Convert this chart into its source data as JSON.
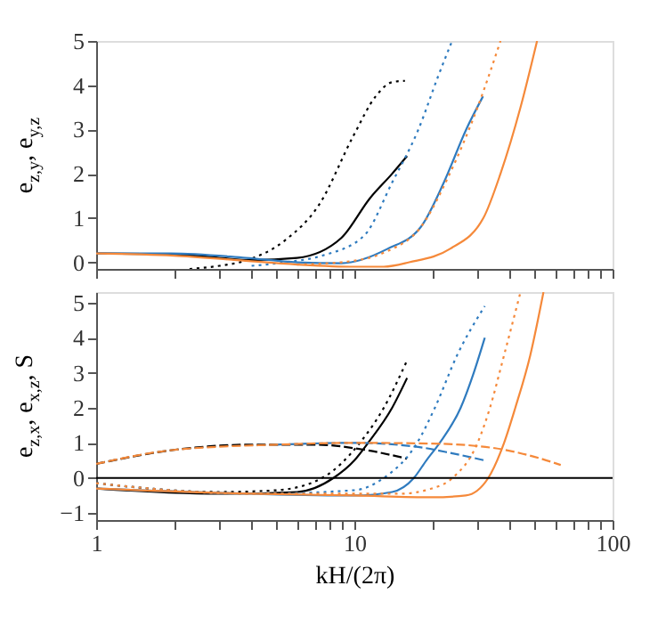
{
  "chart_data": [
    {
      "type": "line",
      "ylabel": "e$_{z,y}$, e$_{y,z}$",
      "xlim": [
        1,
        100
      ],
      "log": "x",
      "ylim": [
        -0.15,
        5
      ],
      "yticks": [
        0,
        1,
        2,
        3,
        4,
        5
      ],
      "xticks": [
        1,
        {
          "value": 2,
          "label": null
        },
        {
          "value": 3,
          "label": null
        },
        {
          "value": 4,
          "label": null
        },
        {
          "value": 5,
          "label": null
        },
        {
          "value": 6,
          "label": null
        },
        {
          "value": 7,
          "label": null
        },
        {
          "value": 8,
          "label": null
        },
        {
          "value": 9,
          "label": null
        },
        10,
        {
          "value": 20,
          "label": null
        },
        {
          "value": 30,
          "label": null
        },
        {
          "value": 40,
          "label": null
        },
        {
          "value": 50,
          "label": null
        },
        {
          "value": 60,
          "label": null
        },
        {
          "value": 70,
          "label": null
        },
        {
          "value": 80,
          "label": null
        },
        {
          "value": 90,
          "label": null
        },
        100
      ],
      "tick_labels": "y",
      "grid": false,
      "series": [
        {
          "color": "#000000",
          "line_style": "solid",
          "x": [
            1,
            2,
            3,
            4,
            6,
            8.9,
            11.5,
            14,
            16
          ],
          "values": [
            0.2,
            0.18,
            0.1,
            0.05,
            0.1,
            0.55,
            1.45,
            2.0,
            2.4
          ]
        },
        {
          "color": "#000000",
          "line_style": "dotted",
          "x": [
            2.3,
            3,
            3.8,
            5.4,
            7.3,
            9.9,
            12.1,
            14,
            15.7
          ],
          "values": [
            -0.15,
            -0.08,
            0.04,
            0.5,
            1.3,
            2.85,
            3.75,
            4.07,
            4.1
          ]
        },
        {
          "color": "#2f7bbf",
          "line_style": "solid",
          "x": [
            1,
            1.95,
            3.8,
            6,
            8.9,
            13.4,
            18.1,
            22.2,
            27.1,
            31.5
          ],
          "values": [
            0.2,
            0.2,
            0.1,
            0.0,
            -0.02,
            0.3,
            0.8,
            1.8,
            3.0,
            3.75
          ]
        },
        {
          "color": "#2f7bbf",
          "line_style": "dotted",
          "x": [
            4,
            5.4,
            7.5,
            10.9,
            14,
            17.7,
            21.1,
            23.9
          ],
          "values": [
            -0.08,
            0.0,
            0.15,
            0.6,
            1.8,
            3.0,
            4.2,
            5.0
          ]
        },
        {
          "color": "#f5893a",
          "line_style": "solid",
          "x": [
            1,
            2,
            3.5,
            6,
            10,
            13,
            16.3,
            23.4,
            31.6,
            36.8,
            44,
            51
          ],
          "values": [
            0.2,
            0.15,
            0.05,
            -0.05,
            -0.1,
            -0.1,
            0.0,
            0.3,
            1.0,
            2.0,
            3.5,
            5.0
          ]
        },
        {
          "color": "#f5893a",
          "line_style": "dotted",
          "x": [
            6,
            8.9,
            13.4,
            18.1,
            23.4,
            30,
            36.8
          ],
          "values": [
            -0.05,
            0.0,
            0.25,
            0.8,
            2.0,
            3.5,
            5.0
          ]
        }
      ]
    },
    {
      "type": "line",
      "ylabel": "e$_{z,x}$, e$_{x,z}$, S",
      "xlabel": "kH/(2π)",
      "xlim": [
        1,
        100
      ],
      "log": "x",
      "ylim": [
        -1.2,
        5.3
      ],
      "yticks": [
        {
          "value": -1,
          "label": "−1"
        },
        0,
        1,
        2,
        3,
        4,
        5
      ],
      "xticks": [
        1,
        {
          "value": 2,
          "label": null
        },
        {
          "value": 3,
          "label": null
        },
        {
          "value": 4,
          "label": null
        },
        {
          "value": 5,
          "label": null
        },
        {
          "value": 6,
          "label": null
        },
        {
          "value": 7,
          "label": null
        },
        {
          "value": 8,
          "label": null
        },
        {
          "value": 9,
          "label": null
        },
        10,
        {
          "value": 20,
          "label": null
        },
        {
          "value": 30,
          "label": null
        },
        {
          "value": 40,
          "label": null
        },
        {
          "value": 50,
          "label": null
        },
        {
          "value": 60,
          "label": null
        },
        {
          "value": 70,
          "label": null
        },
        {
          "value": 80,
          "label": null
        },
        {
          "value": 90,
          "label": null
        },
        100
      ],
      "grid": false,
      "ref_lines": [
        {
          "axis": "y",
          "value": 0,
          "color": "#000000"
        }
      ],
      "series": [
        {
          "color": "#000000",
          "line_style": "solid",
          "x": [
            1,
            3,
            6,
            8.3,
            10,
            11.3,
            14,
            16
          ],
          "values": [
            -0.3,
            -0.45,
            -0.4,
            0.0,
            0.5,
            1.0,
            2.0,
            2.85
          ]
        },
        {
          "color": "#000000",
          "line_style": "dotted",
          "x": [
            1,
            3,
            5,
            7.5,
            10.5,
            13,
            16
          ],
          "values": [
            -0.15,
            -0.4,
            -0.35,
            0.0,
            1.0,
            2.0,
            3.35
          ]
        },
        {
          "color": "#000000",
          "line_style": "dashed",
          "x": [
            1,
            2,
            4,
            7,
            11,
            16
          ],
          "values": [
            0.4,
            0.8,
            0.95,
            0.95,
            0.8,
            0.55
          ]
        },
        {
          "color": "#2f7bbf",
          "line_style": "solid",
          "x": [
            1,
            4,
            10,
            14,
            17,
            19,
            21.4,
            25.8,
            29,
            32
          ],
          "values": [
            -0.3,
            -0.45,
            -0.5,
            -0.4,
            0.0,
            0.5,
            1.0,
            2.0,
            3.0,
            4.0
          ]
        },
        {
          "color": "#2f7bbf",
          "line_style": "dotted",
          "x": [
            1,
            4,
            10,
            13,
            17.5,
            20.5,
            25,
            32
          ],
          "values": [
            -0.15,
            -0.45,
            -0.35,
            0.0,
            1.0,
            2.0,
            3.5,
            4.9
          ]
        },
        {
          "color": "#2f7bbf",
          "line_style": "dashed",
          "x": [
            5,
            10,
            17,
            24,
            32
          ],
          "values": [
            0.95,
            1.0,
            0.9,
            0.7,
            0.5
          ]
        },
        {
          "color": "#f5893a",
          "line_style": "solid",
          "x": [
            1,
            4,
            10,
            20,
            27,
            33,
            38,
            42,
            48,
            54
          ],
          "values": [
            -0.3,
            -0.45,
            -0.5,
            -0.55,
            -0.5,
            0.0,
            1.0,
            2.0,
            3.5,
            5.3
          ]
        },
        {
          "color": "#f5893a",
          "line_style": "dotted",
          "x": [
            1,
            4,
            15,
            20,
            24,
            30,
            33.5,
            38,
            44
          ],
          "values": [
            -0.15,
            -0.45,
            -0.45,
            -0.3,
            0.0,
            1.0,
            2.0,
            3.5,
            5.3
          ]
        },
        {
          "color": "#f5893a",
          "line_style": "dashed",
          "x": [
            1,
            2,
            5,
            10,
            20,
            35,
            50,
            63
          ],
          "values": [
            0.4,
            0.8,
            0.95,
            1.0,
            0.98,
            0.85,
            0.6,
            0.37
          ]
        }
      ]
    }
  ]
}
